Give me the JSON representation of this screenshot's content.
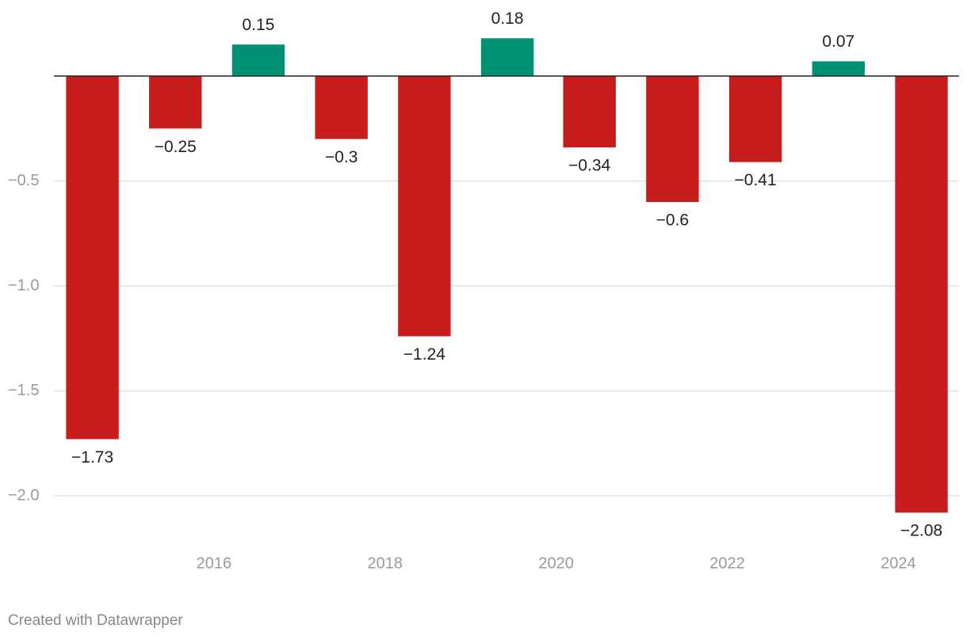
{
  "chart_data": {
    "type": "bar",
    "x": [
      2014.58,
      2015.55,
      2016.52,
      2017.49,
      2018.46,
      2019.43,
      2020.39,
      2021.36,
      2022.33,
      2023.3,
      2024.27
    ],
    "values": [
      -1.73,
      -0.25,
      0.15,
      -0.3,
      -1.24,
      0.18,
      -0.34,
      -0.6,
      -0.41,
      0.07,
      -2.08
    ],
    "value_labels": [
      "−1.73",
      "−0.25",
      "0.15",
      "−0.3",
      "−1.24",
      "0.18",
      "−0.34",
      "−0.6",
      "−0.41",
      "0.07",
      "−2.08"
    ],
    "positive_color": "#009175",
    "negative_color": "#c71e1d",
    "xlim": [
      2014.13,
      2024.71
    ],
    "xticks": [
      2016,
      2018,
      2020,
      2022,
      2024
    ],
    "ylim": [
      -2.2,
      0.3
    ],
    "yticks": [
      {
        "value": -0.5,
        "label": "−0.5"
      },
      {
        "value": -1,
        "label": "−1.0"
      },
      {
        "value": -1.5,
        "label": "−1.5"
      },
      {
        "value": -2,
        "label": "−2.0"
      }
    ],
    "grid": true,
    "footer": "Created with Datawrapper"
  }
}
